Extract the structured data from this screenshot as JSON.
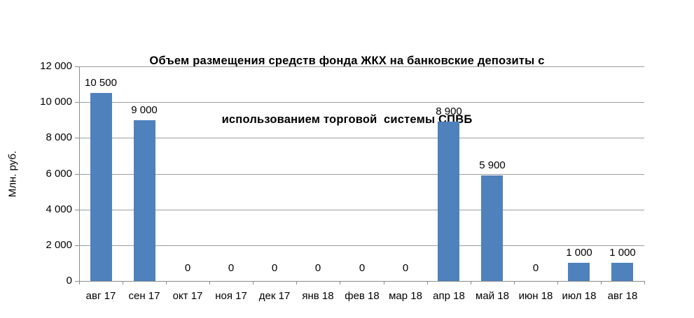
{
  "chart_data": {
    "type": "bar",
    "title_line1": "Объем размещения средств фонда ЖКХ на банковские депозиты с",
    "title_line2": "использованием торговой  системы СПВБ",
    "ylabel": "Млн. руб.",
    "xlabel": "",
    "categories": [
      "авг 17",
      "сен 17",
      "окт 17",
      "ноя 17",
      "дек 17",
      "янв 18",
      "фев 18",
      "мар 18",
      "апр 18",
      "май 18",
      "июн 18",
      "июл 18",
      "авг 18"
    ],
    "values": [
      10500,
      9000,
      0,
      0,
      0,
      0,
      0,
      0,
      8900,
      5900,
      0,
      1000,
      1000
    ],
    "data_labels": [
      "10 500",
      "9 000",
      "0",
      "0",
      "0",
      "0",
      "0",
      "0",
      "8 900",
      "5 900",
      "0",
      "1 000",
      "1 000"
    ],
    "y_tick_values": [
      0,
      2000,
      4000,
      6000,
      8000,
      10000,
      12000
    ],
    "y_tick_labels": [
      "0",
      "2 000",
      "4 000",
      "6 000",
      "8 000",
      "10 000",
      "12 000"
    ],
    "ylim": [
      0,
      12000
    ],
    "grid": true,
    "legend_position": "none",
    "bar_color": "#4F81BD",
    "gridline_color": "#9c9c9c",
    "axis_color": "#8a8a8a",
    "text_color": "#000000"
  }
}
